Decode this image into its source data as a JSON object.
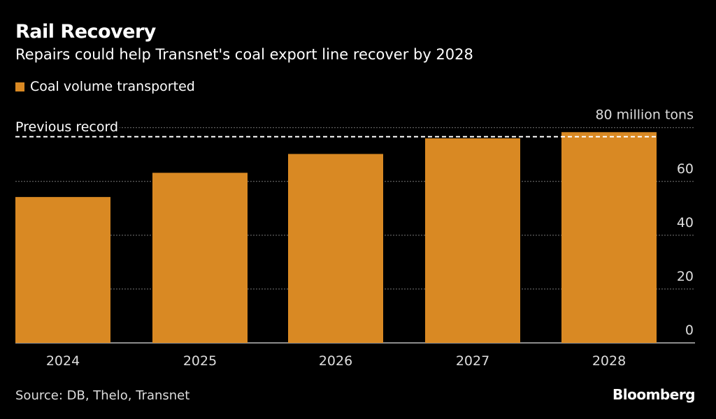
{
  "chart_data": {
    "type": "bar",
    "title": "Rail Recovery",
    "subtitle": "Repairs could help Transnet's coal export line recover by 2028",
    "categories": [
      "2024",
      "2025",
      "2026",
      "2027",
      "2028"
    ],
    "series": [
      {
        "name": "Coal volume transported",
        "values": [
          54.2,
          63.2,
          70.2,
          76.0,
          78.3
        ],
        "color": "#d98923"
      }
    ],
    "yticks": [
      0,
      20,
      40,
      60,
      80
    ],
    "ytick_labels": [
      "0",
      "20",
      "40",
      "60",
      "80 million tons"
    ],
    "ylim": [
      0,
      80
    ],
    "reference_line": {
      "label": "Previous record",
      "value": 76.6,
      "style": "dashed",
      "color": "#ffffff"
    },
    "grid": true,
    "y_axis_position": "right",
    "legend_position": "top-left"
  },
  "source": "Source: DB, Thelo, Transnet",
  "brand": "Bloomberg"
}
